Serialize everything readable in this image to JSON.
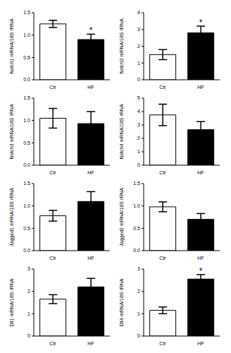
{
  "chart_data": [
    {
      "type": "bar",
      "y_label": "Notch1 mRNA/18S rRNA",
      "categories": [
        "Ctr",
        "HF"
      ],
      "values": [
        1.25,
        0.9
      ],
      "error": [
        0.08,
        0.12
      ],
      "colors": [
        "#ffffff",
        "#000000"
      ],
      "ylim": [
        0,
        1.5
      ],
      "yticks": [
        {
          "value": 0,
          "label": "0.0"
        },
        0.5,
        {
          "value": 1,
          "label": "1.0"
        },
        1.5
      ],
      "annotations": [
        {
          "category": "HF",
          "text": "*"
        }
      ]
    },
    {
      "type": "bar",
      "y_label": "Notch2 mRNA/18S rRNA",
      "categories": [
        "Ctr",
        "HF"
      ],
      "values": [
        1.5,
        2.8
      ],
      "error": [
        0.3,
        0.4
      ],
      "colors": [
        "#ffffff",
        "#000000"
      ],
      "ylim": [
        0,
        4
      ],
      "yticks": [
        0,
        1,
        2,
        3,
        4
      ],
      "annotations": [
        {
          "category": "HF",
          "text": "*"
        }
      ]
    },
    {
      "type": "bar",
      "y_label": "Notch3 mRNA/18S rRNA",
      "categories": [
        "Ctr",
        "HF"
      ],
      "values": [
        1.05,
        0.93
      ],
      "error": [
        0.22,
        0.27
      ],
      "colors": [
        "#ffffff",
        "#000000"
      ],
      "ylim": [
        0,
        1.5
      ],
      "yticks": [
        {
          "value": 0,
          "label": "0.0"
        },
        0.5,
        {
          "value": 1,
          "label": "1.0"
        },
        1.5
      ],
      "annotations": []
    },
    {
      "type": "bar",
      "y_label": "Notch4 mRNA/18S rRNA",
      "categories": [
        "Ctr",
        "HF"
      ],
      "values": [
        3.75,
        2.65
      ],
      "error": [
        0.8,
        0.6
      ],
      "colors": [
        "#ffffff",
        "#000000"
      ],
      "ylim": [
        0,
        5
      ],
      "yticks": [
        0,
        1,
        2,
        3,
        4,
        5
      ],
      "annotations": []
    },
    {
      "type": "bar",
      "y_label": "Jagged1 mRNA/18S rRNA",
      "categories": [
        "Ctr",
        "HF"
      ],
      "values": [
        0.78,
        1.1
      ],
      "error": [
        0.12,
        0.22
      ],
      "colors": [
        "#ffffff",
        "#000000"
      ],
      "ylim": [
        0,
        1.5
      ],
      "yticks": [
        {
          "value": 0,
          "label": "0.0"
        },
        0.5,
        {
          "value": 1,
          "label": "1.0"
        },
        1.5
      ],
      "annotations": []
    },
    {
      "type": "bar",
      "y_label": "Jagged2 mRNA/18S rRNA",
      "categories": [
        "Ctr",
        "HF"
      ],
      "values": [
        0.98,
        0.7
      ],
      "error": [
        0.11,
        0.13
      ],
      "colors": [
        "#ffffff",
        "#000000"
      ],
      "ylim": [
        0,
        1.5
      ],
      "yticks": [
        {
          "value": 0,
          "label": "0.0"
        },
        0.5,
        {
          "value": 1,
          "label": "1.0"
        },
        1.5
      ],
      "annotations": []
    },
    {
      "type": "bar",
      "y_label": "Dll1 mRNA/18S rRNA",
      "categories": [
        "Ctr",
        "HF"
      ],
      "values": [
        1.65,
        2.2
      ],
      "error": [
        0.2,
        0.38
      ],
      "colors": [
        "#ffffff",
        "#000000"
      ],
      "ylim": [
        0,
        3
      ],
      "yticks": [
        0,
        1,
        2,
        3
      ],
      "annotations": []
    },
    {
      "type": "bar",
      "y_label": "Dll4 mRNA/18S rRNA",
      "categories": [
        "Ctr",
        "HF"
      ],
      "values": [
        1.15,
        2.55
      ],
      "error": [
        0.15,
        0.2
      ],
      "colors": [
        "#ffffff",
        "#000000"
      ],
      "ylim": [
        0,
        3
      ],
      "yticks": [
        0,
        1,
        2,
        3
      ],
      "annotations": [
        {
          "category": "HF",
          "text": "*"
        }
      ]
    }
  ]
}
